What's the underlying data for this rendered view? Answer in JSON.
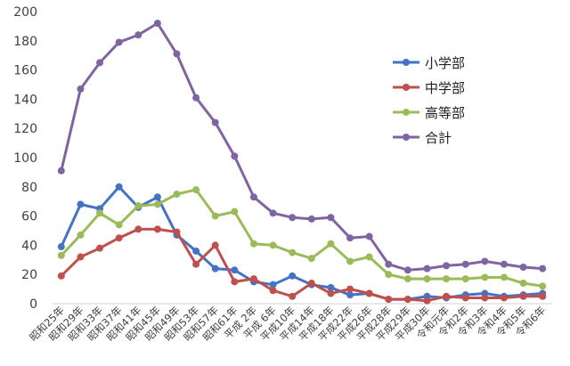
{
  "chart_data": {
    "type": "line",
    "title": "",
    "xlabel": "",
    "ylabel": "",
    "ylim": [
      0,
      200
    ],
    "yticks": [
      0,
      20,
      40,
      60,
      80,
      100,
      120,
      140,
      160,
      180,
      200
    ],
    "grid": false,
    "legend_position": "right",
    "categories": [
      "昭和25年",
      "昭和29年",
      "昭和33年",
      "昭和37年",
      "昭和41年",
      "昭和45年",
      "昭和49年",
      "昭和53年",
      "昭和57年",
      "昭和61年",
      "平成 2年",
      "平成 6年",
      "平成10年",
      "平成14年",
      "平成18年",
      "平成22年",
      "平成26年",
      "平成28年",
      "平成29年",
      "平成30年",
      "令和元年",
      "令和2年",
      "令和3年",
      "令和4年",
      "令和5年",
      "令和6年"
    ],
    "tick_labels": [
      "昭和25年",
      "昭和29年",
      "昭和33年",
      "昭和37年",
      "昭和41年",
      "昭和45年",
      "昭和49年",
      "昭和53年",
      "昭和57年",
      "昭和61年",
      "平成 2年",
      "平成 6年",
      "平成10年",
      "平成14年",
      "平成18年",
      "平成22年",
      "平成26年",
      "平成28年",
      "平成29年",
      "平成30年",
      "令和元年",
      "令和2年",
      "令和3年",
      "令和4年",
      "令和5年",
      "令和6年"
    ],
    "series": [
      {
        "name": "小学部",
        "color": "#4472C4",
        "values": [
          39,
          68,
          65,
          80,
          66,
          73,
          47,
          36,
          24,
          23,
          15,
          13,
          19,
          13,
          11,
          6,
          7,
          3,
          3,
          5,
          4,
          6,
          7,
          5,
          6,
          7
        ]
      },
      {
        "name": "中学部",
        "color": "#C0504D",
        "values": [
          19,
          32,
          38,
          45,
          51,
          51,
          49,
          27,
          40,
          15,
          17,
          9,
          5,
          14,
          7,
          10,
          7,
          3,
          3,
          2,
          5,
          4,
          4,
          4,
          5,
          5
        ]
      },
      {
        "name": "高等部",
        "color": "#9BBB59",
        "values": [
          33,
          47,
          62,
          54,
          67,
          68,
          75,
          78,
          60,
          63,
          41,
          40,
          35,
          31,
          41,
          29,
          32,
          20,
          17,
          17,
          17,
          17,
          18,
          18,
          14,
          12
        ]
      },
      {
        "name": "合計",
        "color": "#8064A2",
        "values": [
          91,
          147,
          165,
          179,
          184,
          192,
          171,
          141,
          124,
          101,
          73,
          62,
          59,
          58,
          59,
          45,
          46,
          27,
          23,
          24,
          26,
          27,
          29,
          27,
          25,
          24
        ]
      }
    ]
  }
}
